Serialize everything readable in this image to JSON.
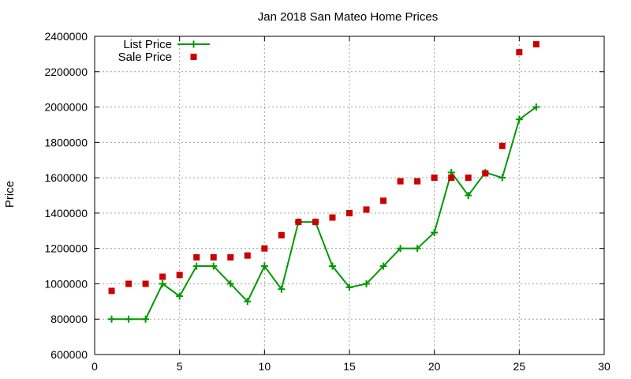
{
  "chart_data": {
    "type": "line",
    "title": "Jan 2018 San Mateo Home Prices",
    "xlabel": "",
    "ylabel": "Price",
    "xlim": [
      0,
      30
    ],
    "ylim": [
      600000,
      2400000
    ],
    "x_ticks": [
      0,
      5,
      10,
      15,
      20,
      25,
      30
    ],
    "y_ticks": [
      600000,
      800000,
      1000000,
      1200000,
      1400000,
      1600000,
      1800000,
      2000000,
      2200000,
      2400000
    ],
    "x_tick_labels": [
      "0",
      "5",
      "10",
      "15",
      "20",
      "25",
      "30"
    ],
    "y_tick_labels": [
      "600000",
      "800000",
      "1000000",
      "1200000",
      "1400000",
      "1600000",
      "1800000",
      "2000000",
      "2200000",
      "2400000"
    ],
    "grid": true,
    "legend_position": "top-left",
    "series": [
      {
        "name": "List Price",
        "style": "line-plus",
        "color": "#009900",
        "x": [
          1,
          2,
          3,
          4,
          5,
          6,
          7,
          8,
          9,
          10,
          11,
          12,
          13,
          14,
          15,
          16,
          17,
          18,
          19,
          20,
          21,
          22,
          23,
          24,
          25,
          26
        ],
        "y": [
          800000,
          800000,
          800000,
          1000000,
          930000,
          1100000,
          1100000,
          1000000,
          900000,
          1100000,
          970000,
          1350000,
          1350000,
          1100000,
          980000,
          1000000,
          1100000,
          1200000,
          1200000,
          1290000,
          1630000,
          1500000,
          1630000,
          1600000,
          1930000,
          2000000
        ]
      },
      {
        "name": "Sale Price",
        "style": "square-points",
        "color": "#cc0000",
        "x": [
          1,
          2,
          3,
          4,
          5,
          6,
          7,
          8,
          9,
          10,
          11,
          12,
          13,
          14,
          15,
          16,
          17,
          18,
          19,
          20,
          21,
          22,
          23,
          24,
          25,
          26
        ],
        "y": [
          960000,
          1000000,
          1000000,
          1040000,
          1050000,
          1150000,
          1150000,
          1150000,
          1160000,
          1200000,
          1275000,
          1350000,
          1350000,
          1375000,
          1400000,
          1420000,
          1470000,
          1580000,
          1580000,
          1600000,
          1600000,
          1600000,
          1625000,
          1780000,
          2310000,
          2355000
        ]
      }
    ]
  }
}
